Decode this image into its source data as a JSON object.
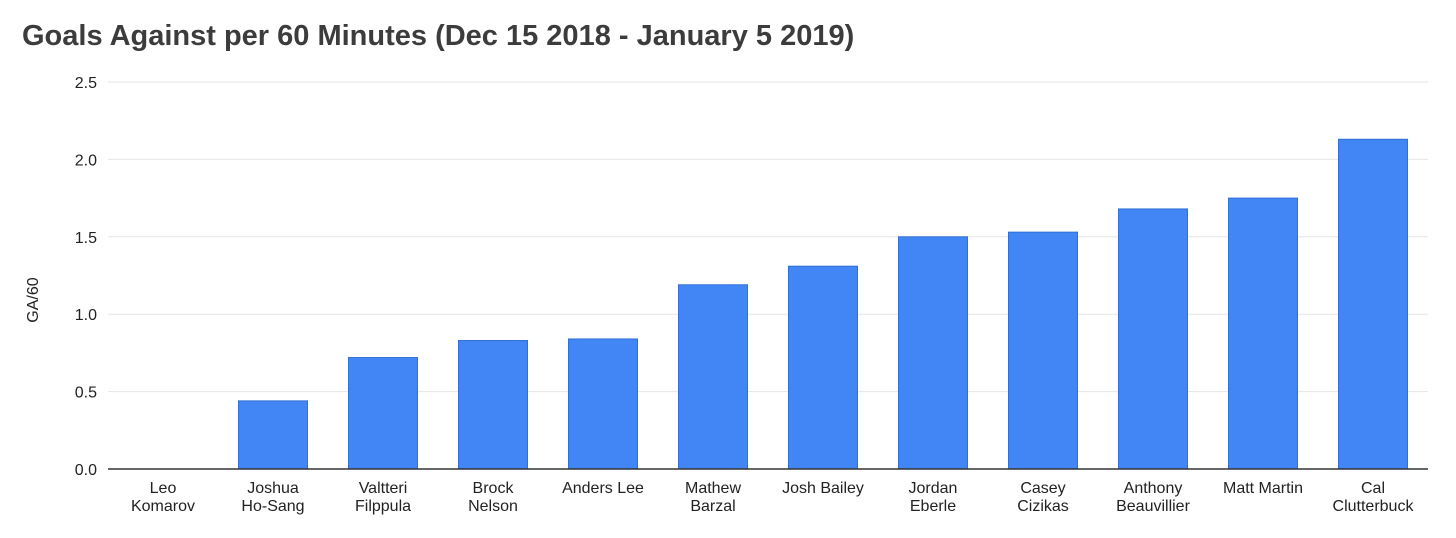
{
  "chart_data": {
    "type": "bar",
    "title": "Goals Against per 60 Minutes (Dec 15 2018 - January 5 2019)",
    "xlabel": "",
    "ylabel": "GA/60",
    "ylim": [
      0,
      2.5
    ],
    "yticks": [
      "0.0",
      "0.5",
      "1.0",
      "1.5",
      "2.0",
      "2.5"
    ],
    "grid": true,
    "legend": "none",
    "bar_color": "#4285f4",
    "categories": [
      [
        "Leo",
        "Komarov"
      ],
      [
        "Joshua",
        "Ho-Sang"
      ],
      [
        "Valtteri",
        "Filppula"
      ],
      [
        "Brock",
        "Nelson"
      ],
      [
        "Anders Lee"
      ],
      [
        "Mathew",
        "Barzal"
      ],
      [
        "Josh Bailey"
      ],
      [
        "Jordan",
        "Eberle"
      ],
      [
        "Casey",
        "Cizikas"
      ],
      [
        "Anthony",
        "Beauvillier"
      ],
      [
        "Matt Martin"
      ],
      [
        "Cal",
        "Clutterbuck"
      ]
    ],
    "values": [
      0.0,
      0.44,
      0.72,
      0.83,
      0.84,
      1.19,
      1.31,
      1.5,
      1.53,
      1.68,
      1.75,
      2.13
    ]
  }
}
